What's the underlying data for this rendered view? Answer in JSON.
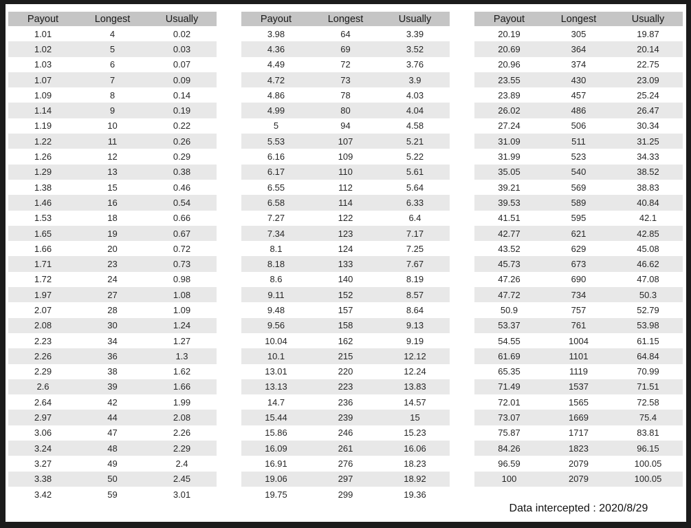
{
  "columns": [
    "Payout",
    "Longest",
    "Usually"
  ],
  "tables": [
    {
      "rows": [
        [
          "1.01",
          "4",
          "0.02"
        ],
        [
          "1.02",
          "5",
          "0.03"
        ],
        [
          "1.03",
          "6",
          "0.07"
        ],
        [
          "1.07",
          "7",
          "0.09"
        ],
        [
          "1.09",
          "8",
          "0.14"
        ],
        [
          "1.14",
          "9",
          "0.19"
        ],
        [
          "1.19",
          "10",
          "0.22"
        ],
        [
          "1.22",
          "11",
          "0.26"
        ],
        [
          "1.26",
          "12",
          "0.29"
        ],
        [
          "1.29",
          "13",
          "0.38"
        ],
        [
          "1.38",
          "15",
          "0.46"
        ],
        [
          "1.46",
          "16",
          "0.54"
        ],
        [
          "1.53",
          "18",
          "0.66"
        ],
        [
          "1.65",
          "19",
          "0.67"
        ],
        [
          "1.66",
          "20",
          "0.72"
        ],
        [
          "1.71",
          "23",
          "0.73"
        ],
        [
          "1.72",
          "24",
          "0.98"
        ],
        [
          "1.97",
          "27",
          "1.08"
        ],
        [
          "2.07",
          "28",
          "1.09"
        ],
        [
          "2.08",
          "30",
          "1.24"
        ],
        [
          "2.23",
          "34",
          "1.27"
        ],
        [
          "2.26",
          "36",
          "1.3"
        ],
        [
          "2.29",
          "38",
          "1.62"
        ],
        [
          "2.6",
          "39",
          "1.66"
        ],
        [
          "2.64",
          "42",
          "1.99"
        ],
        [
          "2.97",
          "44",
          "2.08"
        ],
        [
          "3.06",
          "47",
          "2.26"
        ],
        [
          "3.24",
          "48",
          "2.29"
        ],
        [
          "3.27",
          "49",
          "2.4"
        ],
        [
          "3.38",
          "50",
          "2.45"
        ],
        [
          "3.42",
          "59",
          "3.01"
        ]
      ]
    },
    {
      "rows": [
        [
          "3.98",
          "64",
          "3.39"
        ],
        [
          "4.36",
          "69",
          "3.52"
        ],
        [
          "4.49",
          "72",
          "3.76"
        ],
        [
          "4.72",
          "73",
          "3.9"
        ],
        [
          "4.86",
          "78",
          "4.03"
        ],
        [
          "4.99",
          "80",
          "4.04"
        ],
        [
          "5",
          "94",
          "4.58"
        ],
        [
          "5.53",
          "107",
          "5.21"
        ],
        [
          "6.16",
          "109",
          "5.22"
        ],
        [
          "6.17",
          "110",
          "5.61"
        ],
        [
          "6.55",
          "112",
          "5.64"
        ],
        [
          "6.58",
          "114",
          "6.33"
        ],
        [
          "7.27",
          "122",
          "6.4"
        ],
        [
          "7.34",
          "123",
          "7.17"
        ],
        [
          "8.1",
          "124",
          "7.25"
        ],
        [
          "8.18",
          "133",
          "7.67"
        ],
        [
          "8.6",
          "140",
          "8.19"
        ],
        [
          "9.11",
          "152",
          "8.57"
        ],
        [
          "9.48",
          "157",
          "8.64"
        ],
        [
          "9.56",
          "158",
          "9.13"
        ],
        [
          "10.04",
          "162",
          "9.19"
        ],
        [
          "10.1",
          "215",
          "12.12"
        ],
        [
          "13.01",
          "220",
          "12.24"
        ],
        [
          "13.13",
          "223",
          "13.83"
        ],
        [
          "14.7",
          "236",
          "14.57"
        ],
        [
          "15.44",
          "239",
          "15"
        ],
        [
          "15.86",
          "246",
          "15.23"
        ],
        [
          "16.09",
          "261",
          "16.06"
        ],
        [
          "16.91",
          "276",
          "18.23"
        ],
        [
          "19.06",
          "297",
          "18.92"
        ],
        [
          "19.75",
          "299",
          "19.36"
        ]
      ]
    },
    {
      "rows": [
        [
          "20.19",
          "305",
          "19.87"
        ],
        [
          "20.69",
          "364",
          "20.14"
        ],
        [
          "20.96",
          "374",
          "22.75"
        ],
        [
          "23.55",
          "430",
          "23.09"
        ],
        [
          "23.89",
          "457",
          "25.24"
        ],
        [
          "26.02",
          "486",
          "26.47"
        ],
        [
          "27.24",
          "506",
          "30.34"
        ],
        [
          "31.09",
          "511",
          "31.25"
        ],
        [
          "31.99",
          "523",
          "34.33"
        ],
        [
          "35.05",
          "540",
          "38.52"
        ],
        [
          "39.21",
          "569",
          "38.83"
        ],
        [
          "39.53",
          "589",
          "40.84"
        ],
        [
          "41.51",
          "595",
          "42.1"
        ],
        [
          "42.77",
          "621",
          "42.85"
        ],
        [
          "43.52",
          "629",
          "45.08"
        ],
        [
          "45.73",
          "673",
          "46.62"
        ],
        [
          "47.26",
          "690",
          "47.08"
        ],
        [
          "47.72",
          "734",
          "50.3"
        ],
        [
          "50.9",
          "757",
          "52.79"
        ],
        [
          "53.37",
          "761",
          "53.98"
        ],
        [
          "54.55",
          "1004",
          "61.15"
        ],
        [
          "61.69",
          "1101",
          "64.84"
        ],
        [
          "65.35",
          "1119",
          "70.99"
        ],
        [
          "71.49",
          "1537",
          "71.51"
        ],
        [
          "72.01",
          "1565",
          "72.58"
        ],
        [
          "73.07",
          "1669",
          "75.4"
        ],
        [
          "75.87",
          "1717",
          "83.81"
        ],
        [
          "84.26",
          "1823",
          "96.15"
        ],
        [
          "96.59",
          "2079",
          "100.05"
        ],
        [
          "100",
          "2079",
          "100.05"
        ]
      ]
    }
  ],
  "footer": {
    "text": "Data intercepted : 2020/8/29"
  },
  "colors": {
    "frame": "#1b1b1b",
    "content_bg": "#ffffff",
    "header_bg": "#c5c5c5",
    "stripe_bg": "#e8e8e8",
    "text": "#1a1a1a"
  }
}
